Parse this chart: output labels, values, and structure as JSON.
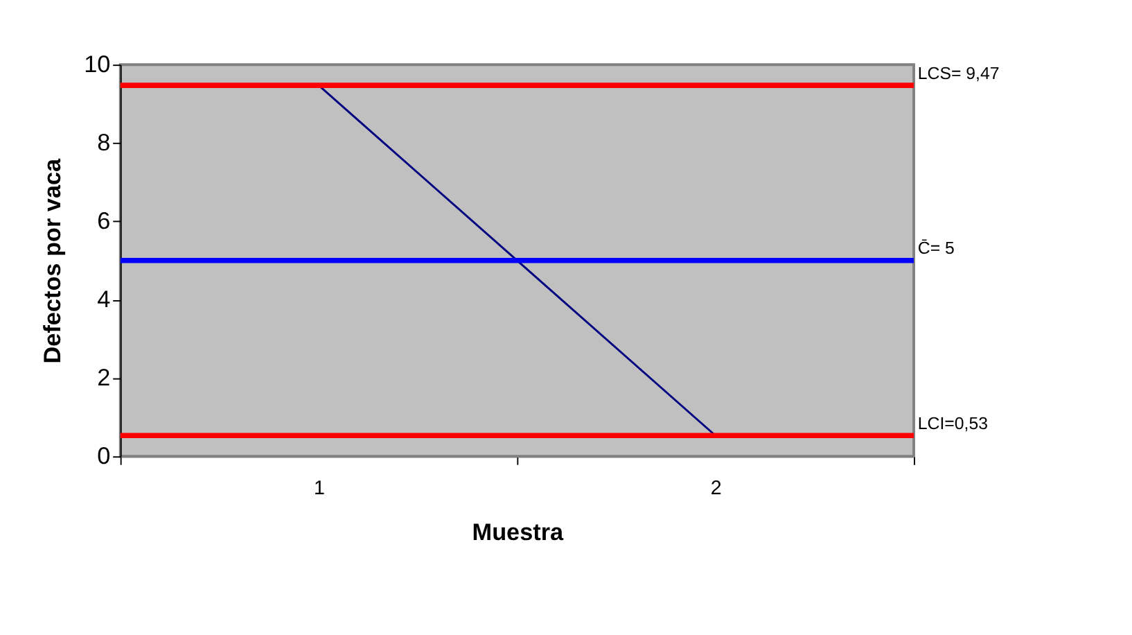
{
  "chart_data": {
    "type": "line",
    "xlabel": "Muestra",
    "ylabel": "Defectos por vaca",
    "categories": [
      "1",
      "2"
    ],
    "series": [
      {
        "color": "#000080",
        "values": [
          9.47,
          0.53
        ]
      }
    ],
    "ylim": [
      0,
      10
    ],
    "yticks": [
      0,
      2,
      4,
      6,
      8,
      10
    ],
    "grid": false,
    "marker": "none",
    "line_style": "solid",
    "ref_lines": [
      {
        "axis": "y",
        "value": 9.47,
        "label": "LCS= 9,47",
        "color": "#ff0000"
      },
      {
        "axis": "y",
        "value": 5,
        "label": "C̄= 5",
        "color": "#0000ff"
      },
      {
        "axis": "y",
        "value": 0.53,
        "label": "LCI=0,53",
        "color": "#ff0000"
      }
    ]
  }
}
